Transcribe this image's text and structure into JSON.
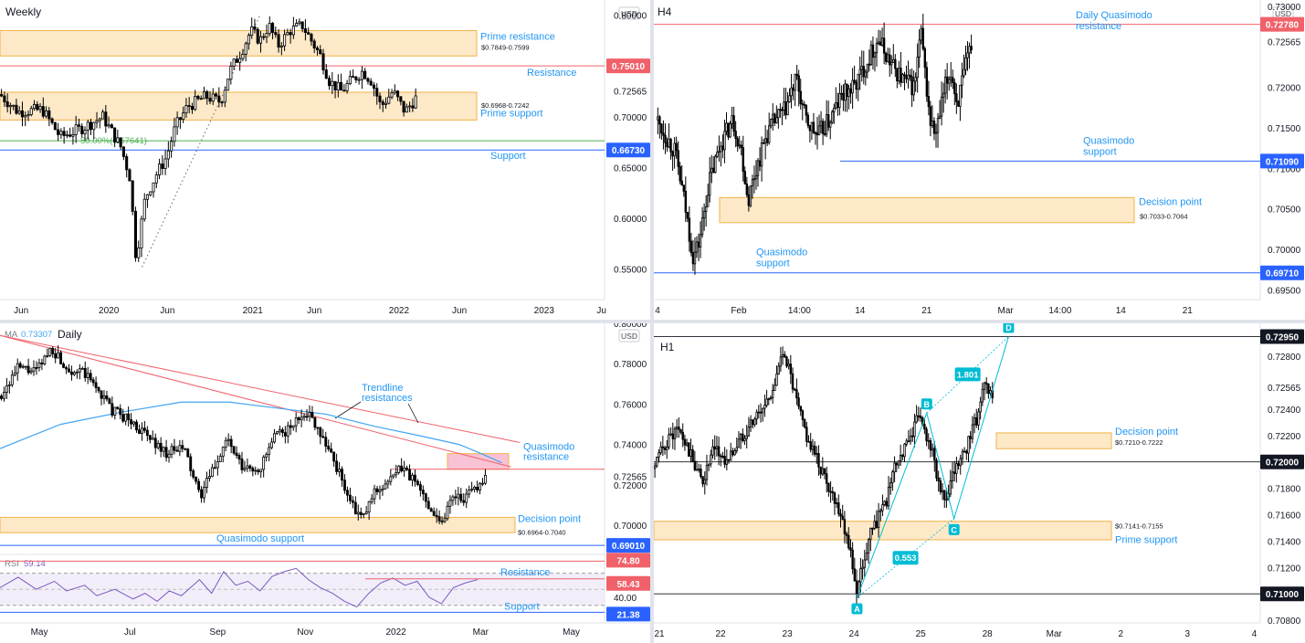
{
  "colors": {
    "zone_fill": "#fde9c8",
    "zone_stroke": "#f2b247",
    "red_line": "#f0616a",
    "blue_line": "#2962ff",
    "label_blue": "#2196f3",
    "green": "#4caf50",
    "ma": "#42a5f5",
    "rsi": "#7e57c2",
    "teal": "#00bcd4",
    "candle": "#000000"
  },
  "chart_data": [
    {
      "id": "weekly",
      "type": "candlestick",
      "title": "Weekly",
      "currency": "USD",
      "ylim": [
        0.52,
        0.815
      ],
      "xticks": [
        {
          "label": "Jun",
          "t": 0.035
        },
        {
          "label": "2020",
          "t": 0.18
        },
        {
          "label": "Jun",
          "t": 0.277
        },
        {
          "label": "2021",
          "t": 0.418
        },
        {
          "label": "Jun",
          "t": 0.52
        },
        {
          "label": "2022",
          "t": 0.66
        },
        {
          "label": "Jun",
          "t": 0.76
        },
        {
          "label": "2023",
          "t": 0.9
        },
        {
          "label": "Ju",
          "t": 0.995
        }
      ],
      "yticks": [
        "0.80000",
        "0.75000",
        "0.72565",
        "0.70000",
        "0.65000",
        "0.60000",
        "0.55000"
      ],
      "ytick_values": [
        0.8,
        0.75,
        0.72565,
        0.7,
        0.65,
        0.6,
        0.55
      ],
      "price_path": [
        [
          0.0,
          0.722
        ],
        [
          0.03,
          0.705
        ],
        [
          0.07,
          0.707
        ],
        [
          0.1,
          0.68
        ],
        [
          0.14,
          0.69
        ],
        [
          0.17,
          0.7
        ],
        [
          0.2,
          0.67
        ],
        [
          0.215,
          0.64
        ],
        [
          0.225,
          0.56
        ],
        [
          0.24,
          0.62
        ],
        [
          0.26,
          0.645
        ],
        [
          0.275,
          0.66
        ],
        [
          0.29,
          0.69
        ],
        [
          0.31,
          0.71
        ],
        [
          0.34,
          0.72
        ],
        [
          0.365,
          0.715
        ],
        [
          0.38,
          0.745
        ],
        [
          0.4,
          0.765
        ],
        [
          0.415,
          0.785
        ],
        [
          0.43,
          0.775
        ],
        [
          0.445,
          0.79
        ],
        [
          0.46,
          0.77
        ],
        [
          0.48,
          0.785
        ],
        [
          0.5,
          0.79
        ],
        [
          0.515,
          0.775
        ],
        [
          0.53,
          0.76
        ],
        [
          0.545,
          0.735
        ],
        [
          0.565,
          0.725
        ],
        [
          0.58,
          0.735
        ],
        [
          0.6,
          0.745
        ],
        [
          0.615,
          0.735
        ],
        [
          0.63,
          0.71
        ],
        [
          0.65,
          0.725
        ],
        [
          0.67,
          0.705
        ],
        [
          0.69,
          0.72
        ]
      ],
      "zones": [
        {
          "label": "Prime resistance",
          "range_label": "$0.7849-0.7599",
          "top": 0.7849,
          "bottom": 0.7599
        },
        {
          "label": "Prime support",
          "range_label": "$0.6968-0.7242",
          "top": 0.7242,
          "bottom": 0.6968
        }
      ],
      "lines": [
        {
          "label": "Resistance",
          "value": 0.7501,
          "price_tag": "0.75010",
          "color": "red"
        },
        {
          "label": "Support",
          "value": 0.6673,
          "price_tag": "0.66730",
          "color": "blue"
        }
      ],
      "fib": {
        "label": "50.00%(0.67641)",
        "value": 0.6764
      },
      "trendline": {
        "from": [
          0.235,
          0.552
        ],
        "to": [
          0.43,
          0.8
        ]
      }
    },
    {
      "id": "h4",
      "type": "candlestick",
      "title": "H4",
      "currency": "USD",
      "ylim": [
        0.6938,
        0.7308
      ],
      "xticks": [
        {
          "label": "4",
          "t": 0.0
        },
        {
          "label": "Feb",
          "t": 0.14
        },
        {
          "label": "14:00",
          "t": 0.24
        },
        {
          "label": "14",
          "t": 0.34
        },
        {
          "label": "21",
          "t": 0.45
        },
        {
          "label": "Mar",
          "t": 0.58
        },
        {
          "label": "14:00",
          "t": 0.67
        },
        {
          "label": "14",
          "t": 0.77
        },
        {
          "label": "21",
          "t": 0.88
        }
      ],
      "yticks": [
        "0.73000",
        "0.72565",
        "0.72000",
        "0.71500",
        "0.71000",
        "0.70500",
        "0.70000",
        "0.69500"
      ],
      "ytick_values": [
        0.73,
        0.72565,
        0.72,
        0.715,
        0.71,
        0.705,
        0.7,
        0.695
      ],
      "price_path": [
        [
          0.005,
          0.716
        ],
        [
          0.02,
          0.714
        ],
        [
          0.035,
          0.712
        ],
        [
          0.05,
          0.706
        ],
        [
          0.065,
          0.699
        ],
        [
          0.075,
          0.701
        ],
        [
          0.09,
          0.708
        ],
        [
          0.11,
          0.713
        ],
        [
          0.13,
          0.716
        ],
        [
          0.145,
          0.712
        ],
        [
          0.155,
          0.706
        ],
        [
          0.165,
          0.709
        ],
        [
          0.185,
          0.714
        ],
        [
          0.2,
          0.716
        ],
        [
          0.215,
          0.717
        ],
        [
          0.235,
          0.721
        ],
        [
          0.25,
          0.716
        ],
        [
          0.27,
          0.714
        ],
        [
          0.29,
          0.716
        ],
        [
          0.31,
          0.719
        ],
        [
          0.33,
          0.72
        ],
        [
          0.35,
          0.723
        ],
        [
          0.37,
          0.726
        ],
        [
          0.39,
          0.723
        ],
        [
          0.41,
          0.721
        ],
        [
          0.43,
          0.72
        ],
        [
          0.44,
          0.727
        ],
        [
          0.455,
          0.716
        ],
        [
          0.465,
          0.714
        ],
        [
          0.48,
          0.72
        ],
        [
          0.49,
          0.722
        ],
        [
          0.5,
          0.718
        ],
        [
          0.51,
          0.721
        ],
        [
          0.525,
          0.726
        ]
      ],
      "zones": [
        {
          "label": "Decision point",
          "range_label": "$0.7033-0.7064",
          "top": 0.7064,
          "bottom": 0.7033
        }
      ],
      "lines": [
        {
          "label": "Daily Quasimodo resistance",
          "value": 0.7278,
          "price_tag": "0.72780",
          "color": "red"
        },
        {
          "label": "Quasimodo support",
          "value": 0.7109,
          "price_tag": "0.71090",
          "color": "blue"
        },
        {
          "label": "Quasimodo support",
          "value": 0.6971,
          "price_tag": "0.69710",
          "color": "blue"
        }
      ]
    },
    {
      "id": "daily",
      "type": "candlestick",
      "title": "Daily",
      "currency": "USD",
      "ma_label": "MA",
      "ma_value": "0.73307",
      "ylim": [
        0.687,
        0.8
      ],
      "xticks": [
        {
          "label": "May",
          "t": 0.065
        },
        {
          "label": "Jul",
          "t": 0.215
        },
        {
          "label": "Sep",
          "t": 0.36
        },
        {
          "label": "Nov",
          "t": 0.505
        },
        {
          "label": "2022",
          "t": 0.655
        },
        {
          "label": "Mar",
          "t": 0.795
        },
        {
          "label": "May",
          "t": 0.945
        }
      ],
      "yticks": [
        "0.80000",
        "0.78000",
        "0.76000",
        "0.74000",
        "0.72565",
        "0.72000",
        "0.70000"
      ],
      "ytick_values": [
        0.8,
        0.78,
        0.76,
        0.74,
        0.72565,
        0.72,
        0.7
      ],
      "price_path": [
        [
          0.0,
          0.764
        ],
        [
          0.03,
          0.778
        ],
        [
          0.06,
          0.776
        ],
        [
          0.085,
          0.788
        ],
        [
          0.11,
          0.778
        ],
        [
          0.14,
          0.775
        ],
        [
          0.165,
          0.766
        ],
        [
          0.185,
          0.757
        ],
        [
          0.21,
          0.753
        ],
        [
          0.24,
          0.745
        ],
        [
          0.275,
          0.736
        ],
        [
          0.305,
          0.738
        ],
        [
          0.33,
          0.714
        ],
        [
          0.355,
          0.729
        ],
        [
          0.375,
          0.743
        ],
        [
          0.4,
          0.728
        ],
        [
          0.43,
          0.728
        ],
        [
          0.455,
          0.744
        ],
        [
          0.48,
          0.748
        ],
        [
          0.505,
          0.757
        ],
        [
          0.525,
          0.749
        ],
        [
          0.545,
          0.737
        ],
        [
          0.565,
          0.723
        ],
        [
          0.585,
          0.708
        ],
        [
          0.6,
          0.703
        ],
        [
          0.62,
          0.717
        ],
        [
          0.645,
          0.722
        ],
        [
          0.665,
          0.729
        ],
        [
          0.685,
          0.722
        ],
        [
          0.71,
          0.71
        ],
        [
          0.73,
          0.701
        ],
        [
          0.75,
          0.716
        ],
        [
          0.77,
          0.713
        ],
        [
          0.79,
          0.72
        ],
        [
          0.805,
          0.725
        ]
      ],
      "ma_path": [
        [
          0.0,
          0.738
        ],
        [
          0.1,
          0.75
        ],
        [
          0.2,
          0.756
        ],
        [
          0.3,
          0.761
        ],
        [
          0.38,
          0.761
        ],
        [
          0.46,
          0.758
        ],
        [
          0.54,
          0.755
        ],
        [
          0.62,
          0.749
        ],
        [
          0.7,
          0.744
        ],
        [
          0.76,
          0.74
        ],
        [
          0.8,
          0.735
        ],
        [
          0.83,
          0.731
        ]
      ],
      "trendlines": [
        {
          "from": [
            0.0,
            0.794
          ],
          "to": [
            0.845,
            0.729
          ]
        },
        {
          "from": [
            0.0,
            0.794
          ],
          "to": [
            0.86,
            0.741
          ]
        }
      ],
      "trendline_label": "Trendline resistances",
      "zones": [
        {
          "label": "Quasimodo resistance",
          "top": 0.7355,
          "bottom": 0.7278,
          "style": "pink"
        },
        {
          "label": "Decision point",
          "range_label": "$0.6964-0.7040",
          "top": 0.704,
          "bottom": 0.6964
        }
      ],
      "lines": [
        {
          "label": "Quasimodo support",
          "value": 0.6901,
          "price_tag": "0.69010",
          "color": "blue"
        }
      ],
      "qm_line": {
        "value": 0.7278
      }
    },
    {
      "id": "rsi",
      "type": "line",
      "title": "RSI",
      "value_label": "59.14",
      "ylim": [
        15,
        90
      ],
      "yticks": [
        "74.80",
        "58.43",
        "40.00",
        "21.38"
      ],
      "ytick_values": [
        74.8,
        58.43,
        40.0,
        21.38
      ],
      "path": [
        [
          0.0,
          52
        ],
        [
          0.03,
          65
        ],
        [
          0.06,
          50
        ],
        [
          0.09,
          60
        ],
        [
          0.11,
          48
        ],
        [
          0.14,
          55
        ],
        [
          0.16,
          42
        ],
        [
          0.19,
          50
        ],
        [
          0.22,
          38
        ],
        [
          0.24,
          45
        ],
        [
          0.26,
          35
        ],
        [
          0.28,
          48
        ],
        [
          0.3,
          42
        ],
        [
          0.33,
          62
        ],
        [
          0.35,
          45
        ],
        [
          0.37,
          72
        ],
        [
          0.39,
          55
        ],
        [
          0.41,
          60
        ],
        [
          0.43,
          48
        ],
        [
          0.45,
          66
        ],
        [
          0.47,
          72
        ],
        [
          0.49,
          76
        ],
        [
          0.51,
          62
        ],
        [
          0.53,
          52
        ],
        [
          0.55,
          45
        ],
        [
          0.57,
          35
        ],
        [
          0.59,
          28
        ],
        [
          0.61,
          45
        ],
        [
          0.63,
          58
        ],
        [
          0.65,
          64
        ],
        [
          0.67,
          55
        ],
        [
          0.69,
          60
        ],
        [
          0.71,
          40
        ],
        [
          0.73,
          32
        ],
        [
          0.75,
          52
        ],
        [
          0.77,
          58
        ],
        [
          0.79,
          62
        ]
      ],
      "lines": [
        {
          "label": "Resistance",
          "value": 58.43,
          "price_tag": "58.43",
          "color": "red"
        },
        {
          "label": "Support",
          "value": 21.38,
          "price_tag": "21.38",
          "color": "blue"
        }
      ],
      "upper_band": 70,
      "lower_band": 30,
      "upper_tag": "74.80"
    },
    {
      "id": "h1",
      "type": "candlestick",
      "title": "H1",
      "currency": "USD",
      "ylim": [
        0.7078,
        0.7305
      ],
      "xticks": [
        {
          "label": "21",
          "t": 0.0
        },
        {
          "label": "22",
          "t": 0.11
        },
        {
          "label": "23",
          "t": 0.22
        },
        {
          "label": "24",
          "t": 0.33
        },
        {
          "label": "25",
          "t": 0.44
        },
        {
          "label": "28",
          "t": 0.55
        },
        {
          "label": "Mar",
          "t": 0.66
        },
        {
          "label": "2",
          "t": 0.77
        },
        {
          "label": "3",
          "t": 0.88
        },
        {
          "label": "4",
          "t": 0.99
        }
      ],
      "yticks": [
        "0.72800",
        "0.72565",
        "0.72400",
        "0.72200",
        "0.72000",
        "0.71800",
        "0.71600",
        "0.71400",
        "0.71200",
        "0.71000",
        "0.70800"
      ],
      "ytick_values": [
        0.728,
        0.72565,
        0.724,
        0.722,
        0.72,
        0.718,
        0.716,
        0.714,
        0.712,
        0.71,
        0.708
      ],
      "price_path": [
        [
          0.0,
          0.7195
        ],
        [
          0.02,
          0.7215
        ],
        [
          0.04,
          0.7225
        ],
        [
          0.06,
          0.7205
        ],
        [
          0.08,
          0.7185
        ],
        [
          0.1,
          0.721
        ],
        [
          0.12,
          0.72
        ],
        [
          0.14,
          0.7215
        ],
        [
          0.16,
          0.723
        ],
        [
          0.18,
          0.724
        ],
        [
          0.2,
          0.726
        ],
        [
          0.215,
          0.7285
        ],
        [
          0.235,
          0.7245
        ],
        [
          0.255,
          0.7215
        ],
        [
          0.275,
          0.7195
        ],
        [
          0.295,
          0.7175
        ],
        [
          0.31,
          0.716
        ],
        [
          0.325,
          0.713
        ],
        [
          0.335,
          0.71
        ],
        [
          0.345,
          0.7125
        ],
        [
          0.36,
          0.715
        ],
        [
          0.38,
          0.7165
        ],
        [
          0.4,
          0.72
        ],
        [
          0.42,
          0.7215
        ],
        [
          0.435,
          0.7235
        ],
        [
          0.45,
          0.722
        ],
        [
          0.46,
          0.7205
        ],
        [
          0.48,
          0.7165
        ],
        [
          0.49,
          0.7185
        ],
        [
          0.51,
          0.7205
        ],
        [
          0.53,
          0.723
        ],
        [
          0.545,
          0.7255
        ],
        [
          0.56,
          0.725
        ]
      ],
      "zones": [
        {
          "label": "Decision point",
          "range_label": "$0.7210-0.7222",
          "top": 0.7222,
          "bottom": 0.721
        },
        {
          "label": "Prime support",
          "range_label": "$0.7141-0.7155",
          "top": 0.7155,
          "bottom": 0.7141
        }
      ],
      "lines": [
        {
          "value": 0.72,
          "price_tag": "0.72000",
          "color": "black"
        },
        {
          "value": 0.71,
          "price_tag": "0.71000",
          "color": "black"
        },
        {
          "value": 0.7295,
          "price_tag": "0.72950",
          "color": "black"
        }
      ],
      "pattern": {
        "points": [
          {
            "label": "A",
            "t": 0.335,
            "v": 0.7097
          },
          {
            "label": "B",
            "t": 0.45,
            "v": 0.7237
          },
          {
            "label": "C",
            "t": 0.495,
            "v": 0.7157
          },
          {
            "label": "D",
            "t": 0.585,
            "v": 0.7295
          }
        ],
        "ratios": [
          "0.553",
          "1.801"
        ]
      }
    }
  ]
}
